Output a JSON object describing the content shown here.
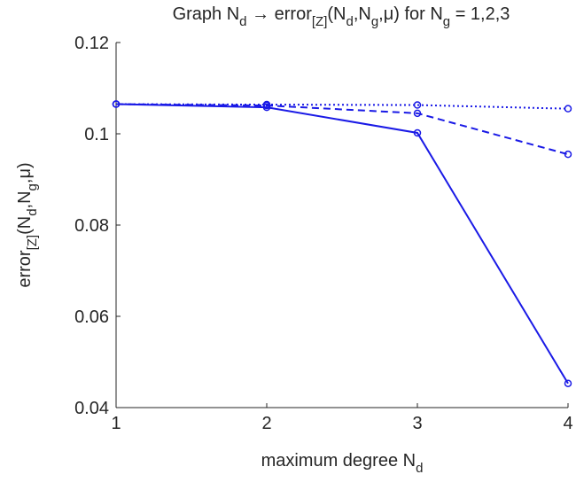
{
  "chart_data": {
    "type": "line",
    "title": [
      "Graph N",
      "d",
      " → error",
      "[Z]",
      "(N",
      "d",
      ",N",
      "g",
      ",μ) for N",
      "g",
      " = 1,2,3"
    ],
    "xlabel": [
      "maximum degree N",
      "d"
    ],
    "ylabel": [
      "error",
      "[Z]",
      "(N",
      "d",
      ",N",
      "g",
      ",μ)"
    ],
    "x": [
      1,
      2,
      3,
      4
    ],
    "series": [
      {
        "color": "#1a1ae6",
        "dash": "solid",
        "values": [
          0.1065,
          0.1058,
          0.1002,
          0.0453
        ]
      },
      {
        "color": "#1a1ae6",
        "dash": "dashed",
        "values": [
          0.1065,
          0.1062,
          0.1045,
          0.0955
        ]
      },
      {
        "color": "#1a1ae6",
        "dash": "dotted",
        "values": [
          0.1065,
          0.1064,
          0.1063,
          0.1055
        ]
      }
    ],
    "xlim": [
      1,
      4
    ],
    "xticks": [
      1,
      2,
      3,
      4
    ],
    "ylim": [
      0.04,
      0.12
    ],
    "yticks": [
      0.04,
      0.06,
      0.08,
      0.1,
      0.12
    ],
    "grid": false
  }
}
